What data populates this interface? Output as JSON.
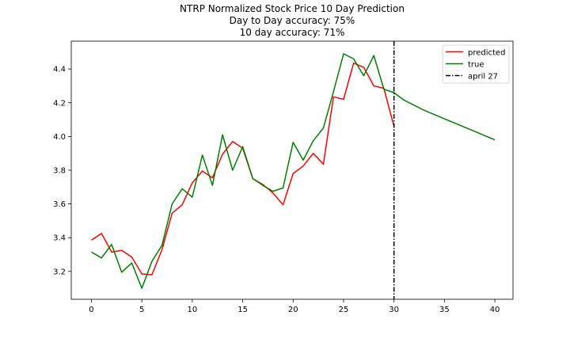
{
  "figure": {
    "title_lines": [
      "NTRP Normalized Stock Price 10 Day Prediction",
      "Day to Day accuracy: 75%",
      "10 day accuracy: 71%"
    ]
  },
  "chart_data": {
    "type": "line",
    "title": "NTRP Normalized Stock Price 10 Day Prediction\nDay to Day accuracy: 75%\n10 day accuracy: 71%",
    "xlabel": "",
    "ylabel": "",
    "xlim": [
      -2,
      41.8
    ],
    "ylim": [
      3.035,
      4.565
    ],
    "grid": false,
    "legend_position": "top-right",
    "x_ticks": [
      0,
      5,
      10,
      15,
      20,
      25,
      30,
      35,
      40
    ],
    "y_ticks": [
      3.2,
      3.4,
      3.6,
      3.8,
      4.0,
      4.2,
      4.4
    ],
    "x_tick_labels": [
      "0",
      "5",
      "10",
      "15",
      "20",
      "25",
      "30",
      "35",
      "40"
    ],
    "y_tick_labels": [
      "3.2",
      "3.4",
      "3.6",
      "3.8",
      "4.0",
      "4.2",
      "4.4"
    ],
    "series": [
      {
        "name": "predicted",
        "color": "#ff0000",
        "x": [
          0,
          1,
          2,
          3,
          4,
          5,
          6,
          7,
          8,
          9,
          10,
          11,
          12,
          13,
          14,
          15,
          16,
          17,
          18,
          19,
          20,
          21,
          22,
          23,
          24,
          25,
          26,
          27,
          28,
          29,
          30
        ],
        "y": [
          3.385,
          3.425,
          3.315,
          3.325,
          3.285,
          3.185,
          3.18,
          3.33,
          3.545,
          3.595,
          3.725,
          3.795,
          3.755,
          3.895,
          3.97,
          3.93,
          3.75,
          3.715,
          3.665,
          3.595,
          3.78,
          3.825,
          3.9,
          3.835,
          4.235,
          4.22,
          4.435,
          4.41,
          4.3,
          4.285,
          4.06
        ]
      },
      {
        "name": "true",
        "color": "#008000",
        "x": [
          0,
          1,
          2,
          3,
          4,
          5,
          6,
          7,
          8,
          9,
          10,
          11,
          12,
          13,
          14,
          15,
          16,
          17,
          18,
          19,
          20,
          21,
          22,
          23,
          24,
          25,
          26,
          27,
          28,
          29,
          30,
          31,
          32,
          33,
          34,
          35,
          36,
          37,
          38,
          39,
          40
        ],
        "y": [
          3.315,
          3.28,
          3.36,
          3.195,
          3.25,
          3.1,
          3.26,
          3.355,
          3.6,
          3.69,
          3.64,
          3.89,
          3.71,
          4.01,
          3.8,
          3.94,
          3.75,
          3.71,
          3.675,
          3.695,
          3.965,
          3.86,
          3.975,
          4.05,
          4.265,
          4.49,
          4.46,
          4.36,
          4.48,
          4.28,
          4.26,
          4.215,
          4.185,
          4.155,
          4.13,
          4.105,
          4.08,
          4.055,
          4.03,
          4.005,
          3.98
        ]
      }
    ],
    "vline": {
      "name": "april 27",
      "x": 30,
      "color": "#000000",
      "style": "dashdot"
    }
  }
}
